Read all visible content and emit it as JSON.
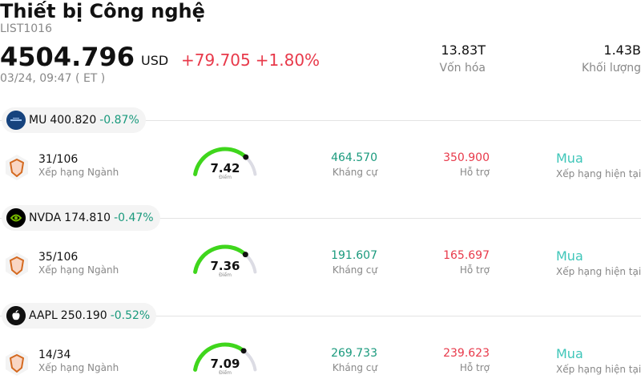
{
  "header": {
    "title": "Thiết bị Công nghệ",
    "code": "LIST1016",
    "price": "4504.796",
    "currency": "USD",
    "change": "+79.705",
    "change_pct": "+1.80%",
    "timestamp": "03/24, 09:47  ( ET )",
    "market_cap_value": "13.83T",
    "market_cap_label": "Vốn hóa",
    "volume_value": "1.43B",
    "volume_label": "Khối lượng"
  },
  "stocks": [
    {
      "symbol": "MU",
      "price": "400.820",
      "change_pct": "-0.87%",
      "rank": "31/106",
      "rank_label": "Xếp hạng Ngành",
      "score": "7.42",
      "score_label": "Điểm",
      "score_fraction": 0.742,
      "resistance": "464.570",
      "resistance_label": "Kháng cự",
      "support": "350.900",
      "support_label": "Hỗ trợ",
      "rating": "Mua",
      "rating_label": "Xếp hạng hiện tại"
    },
    {
      "symbol": "NVDA",
      "price": "174.810",
      "change_pct": "-0.47%",
      "rank": "35/106",
      "rank_label": "Xếp hạng Ngành",
      "score": "7.36",
      "score_label": "Điểm",
      "score_fraction": 0.736,
      "resistance": "191.607",
      "resistance_label": "Kháng cự",
      "support": "165.697",
      "support_label": "Hỗ trợ",
      "rating": "Mua",
      "rating_label": "Xếp hạng hiện tại"
    },
    {
      "symbol": "AAPL",
      "price": "250.190",
      "change_pct": "-0.52%",
      "rank": "14/34",
      "rank_label": "Xếp hạng Ngành",
      "score": "7.09",
      "score_label": "Điểm",
      "score_fraction": 0.709,
      "resistance": "269.733",
      "resistance_label": "Kháng cự",
      "support": "239.623",
      "support_label": "Hỗ trợ",
      "rating": "Mua",
      "rating_label": "Xếp hạng hiện tại"
    }
  ],
  "icons": {
    "rank": "hexagon-shield-icon",
    "logos": [
      "micron-logo-icon",
      "nvidia-logo-icon",
      "apple-logo-icon"
    ]
  },
  "colors": {
    "up": "#e8394a",
    "down": "#1a9a7d",
    "gauge_fill": "#3fd61c",
    "gauge_track": "#dcdce4",
    "rating": "#3fc6b9"
  }
}
